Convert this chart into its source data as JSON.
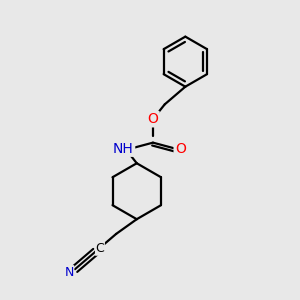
{
  "bg_color": "#e8e8e8",
  "bond_color": "#000000",
  "N_color": "#0000cd",
  "O_color": "#ff0000",
  "C_color": "#000000",
  "line_width": 1.6,
  "font_size": 10,
  "fig_size": [
    3.0,
    3.0
  ],
  "dpi": 100,
  "xlim": [
    0,
    10
  ],
  "ylim": [
    0,
    10
  ]
}
